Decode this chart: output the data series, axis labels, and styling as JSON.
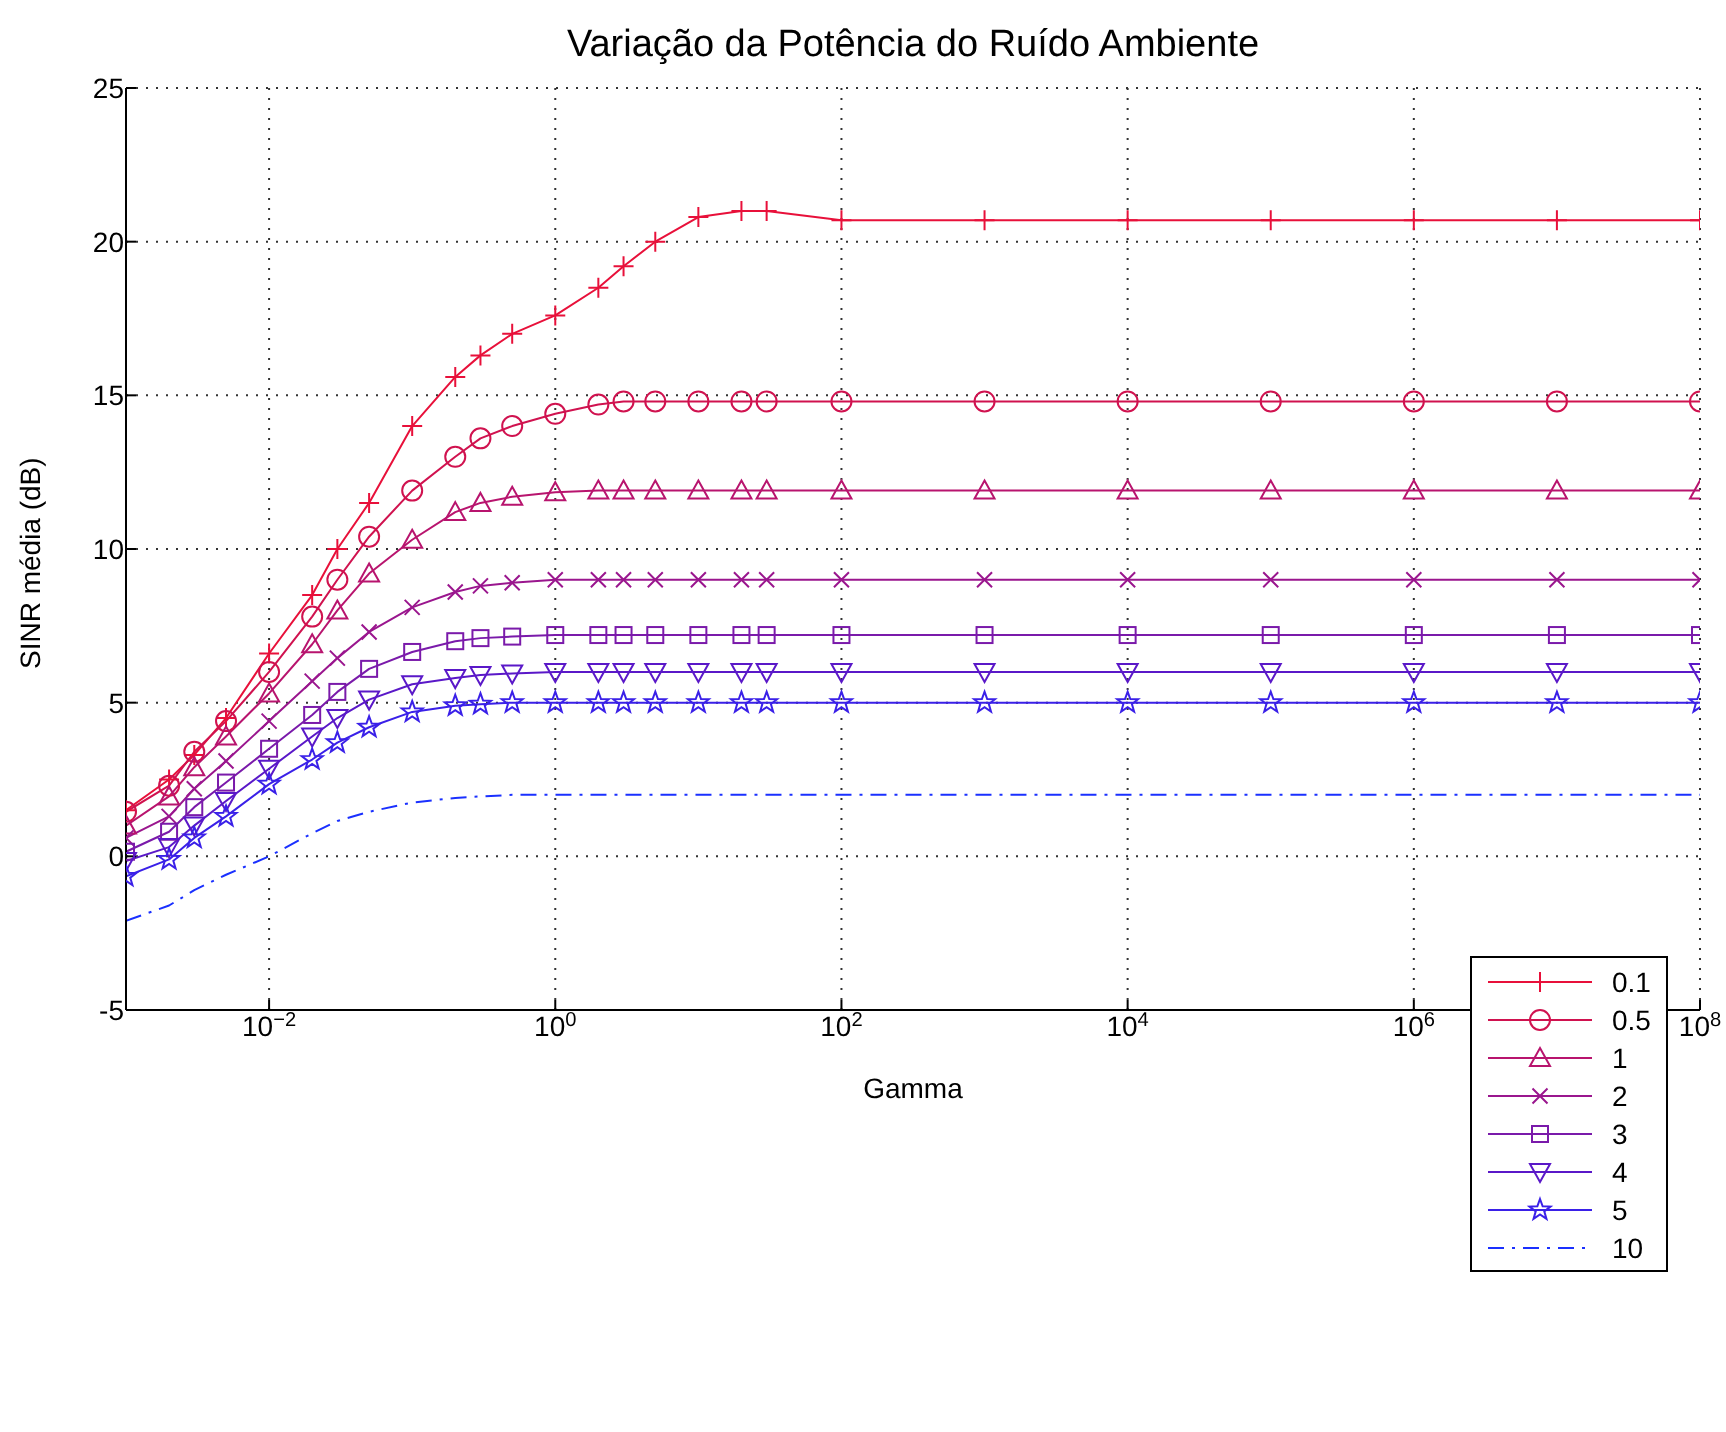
{
  "chart_data": {
    "type": "line",
    "title": "Variação da Potência do Ruído Ambiente",
    "xlabel": "Gamma",
    "ylabel": "SINR média (dB)",
    "x": [
      0.001,
      0.002,
      0.003,
      0.005,
      0.01,
      0.02,
      0.03,
      0.05,
      0.1,
      0.2,
      0.3,
      0.5,
      1,
      2,
      3,
      5,
      10,
      20,
      30,
      100,
      1000,
      10000,
      100000,
      1000000,
      10000000,
      100000000
    ],
    "series": [
      {
        "name": "0.1",
        "color": "#e8103a",
        "marker": "plus",
        "values": [
          1.5,
          2.5,
          3.3,
          4.5,
          6.6,
          8.5,
          10.0,
          11.5,
          14.0,
          15.6,
          16.3,
          17.0,
          17.6,
          18.5,
          19.2,
          20.0,
          20.8,
          21.0,
          21.0,
          20.7,
          20.7,
          20.7,
          20.7,
          20.7,
          20.7,
          20.7
        ]
      },
      {
        "name": "0.5",
        "color": "#d0124f",
        "marker": "circle",
        "values": [
          1.45,
          2.3,
          3.4,
          4.4,
          6.0,
          7.8,
          9.0,
          10.4,
          11.9,
          13.0,
          13.6,
          14.0,
          14.4,
          14.7,
          14.8,
          14.8,
          14.8,
          14.8,
          14.8,
          14.8,
          14.8,
          14.8,
          14.8,
          14.8,
          14.8,
          14.8
        ]
      },
      {
        "name": "1",
        "color": "#b8146e",
        "marker": "triangle",
        "values": [
          1.0,
          1.95,
          2.9,
          3.9,
          5.3,
          6.9,
          8.0,
          9.2,
          10.3,
          11.2,
          11.5,
          11.7,
          11.85,
          11.9,
          11.9,
          11.9,
          11.9,
          11.9,
          11.9,
          11.9,
          11.9,
          11.9,
          11.9,
          11.9,
          11.9,
          11.9
        ]
      },
      {
        "name": "2",
        "color": "#9a168e",
        "marker": "cross",
        "values": [
          0.6,
          1.3,
          2.2,
          3.1,
          4.4,
          5.7,
          6.45,
          7.3,
          8.1,
          8.6,
          8.8,
          8.9,
          9.0,
          9.0,
          9.0,
          9.0,
          9.0,
          9.0,
          9.0,
          9.0,
          9.0,
          9.0,
          9.0,
          9.0,
          9.0,
          9.0
        ]
      },
      {
        "name": "3",
        "color": "#7a1aaa",
        "marker": "square",
        "values": [
          0.15,
          0.8,
          1.6,
          2.4,
          3.5,
          4.6,
          5.35,
          6.1,
          6.65,
          7.0,
          7.1,
          7.15,
          7.2,
          7.2,
          7.2,
          7.2,
          7.2,
          7.2,
          7.2,
          7.2,
          7.2,
          7.2,
          7.2,
          7.2,
          7.2,
          7.2
        ]
      },
      {
        "name": "4",
        "color": "#5a18c8",
        "marker": "triangle-down",
        "values": [
          -0.15,
          0.3,
          1.0,
          1.8,
          2.85,
          3.9,
          4.5,
          5.1,
          5.6,
          5.8,
          5.9,
          5.95,
          6.0,
          6.0,
          6.0,
          6.0,
          6.0,
          6.0,
          6.0,
          6.0,
          6.0,
          6.0,
          6.0,
          6.0,
          6.0,
          6.0
        ]
      },
      {
        "name": "5",
        "color": "#3a20e8",
        "marker": "star",
        "values": [
          -0.65,
          -0.1,
          0.6,
          1.3,
          2.35,
          3.15,
          3.7,
          4.2,
          4.7,
          4.9,
          4.95,
          5.0,
          5.0,
          5.0,
          5.0,
          5.0,
          5.0,
          5.0,
          5.0,
          5.0,
          5.0,
          5.0,
          5.0,
          5.0,
          5.0,
          5.0
        ]
      },
      {
        "name": "10",
        "color": "#1a30ff",
        "marker": "none",
        "line_style": "dashdot",
        "values": [
          -2.1,
          -1.6,
          -1.1,
          -0.6,
          0.0,
          0.75,
          1.15,
          1.45,
          1.75,
          1.9,
          1.95,
          2.0,
          2.0,
          2.0,
          2.0,
          2.0,
          2.0,
          2.0,
          2.0,
          2.0,
          2.0,
          2.0,
          2.0,
          2.0,
          2.0,
          2.0
        ]
      }
    ],
    "log": "x",
    "xlim": [
      0.001,
      100000000
    ],
    "xticks": [
      {
        "value": 0.01,
        "label": "10$^{−2}$"
      },
      {
        "value": 1,
        "label": "10$^{0}$"
      },
      {
        "value": 100,
        "label": "10$^{2}$"
      },
      {
        "value": 10000,
        "label": "10$^{4}$"
      },
      {
        "value": 1000000,
        "label": "10$^{6}$"
      },
      {
        "value": 100000000,
        "label": "10$^{8}$"
      }
    ],
    "ylim": [
      -5,
      25
    ],
    "yticks": [
      -5,
      0,
      5,
      10,
      15,
      20,
      25
    ],
    "grid": true,
    "legend": "bottom right"
  }
}
